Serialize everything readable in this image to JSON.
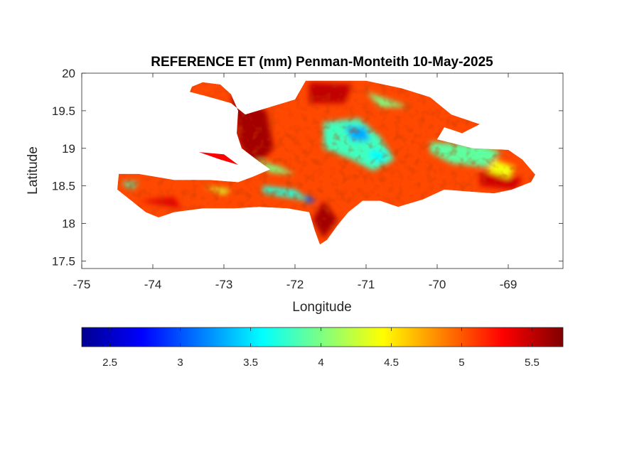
{
  "chart_data": {
    "type": "heatmap",
    "title": "REFERENCE ET (mm) Penman-Monteith 10-May-2025",
    "xlabel": "Longitude",
    "ylabel": "Latitude",
    "xlim": [
      -75,
      -68.23
    ],
    "ylim": [
      17.4,
      20
    ],
    "x_ticks": [
      -75,
      -74,
      -73,
      -72,
      -71,
      -70,
      -69
    ],
    "y_ticks": [
      17.5,
      18,
      18.5,
      19,
      19.5,
      20
    ],
    "x_tick_labels": [
      "-75",
      "-74",
      "-73",
      "-72",
      "-71",
      "-70",
      "-69"
    ],
    "y_tick_labels": [
      "17.5",
      "18",
      "18.5",
      "19",
      "19.5",
      "20"
    ],
    "colormap": "jet",
    "colorbar": {
      "orientation": "horizontal",
      "placement": "below",
      "range": [
        2.3,
        5.72
      ],
      "ticks": [
        2.5,
        3,
        3.5,
        4,
        4.5,
        5,
        5.5
      ],
      "tick_labels": [
        "2.5",
        "3",
        "3.5",
        "4",
        "4.5",
        "5",
        "5.5"
      ]
    },
    "land_outline": [
      [
        -74.48,
        18.66
      ],
      [
        -74.2,
        18.66
      ],
      [
        -73.7,
        18.58
      ],
      [
        -73.2,
        18.58
      ],
      [
        -72.8,
        18.55
      ],
      [
        -72.6,
        18.62
      ],
      [
        -72.35,
        18.72
      ],
      [
        -72.5,
        18.82
      ],
      [
        -72.75,
        19.0
      ],
      [
        -72.82,
        19.2
      ],
      [
        -72.8,
        19.5
      ],
      [
        -72.9,
        19.72
      ],
      [
        -73.05,
        19.85
      ],
      [
        -73.3,
        19.88
      ],
      [
        -73.45,
        19.82
      ],
      [
        -73.48,
        19.75
      ],
      [
        -73.2,
        19.68
      ],
      [
        -72.9,
        19.6
      ],
      [
        -72.7,
        19.45
      ],
      [
        -72.35,
        19.55
      ],
      [
        -72.0,
        19.65
      ],
      [
        -71.85,
        19.9
      ],
      [
        -71.0,
        19.9
      ],
      [
        -70.5,
        19.8
      ],
      [
        -70.1,
        19.68
      ],
      [
        -69.8,
        19.45
      ],
      [
        -69.4,
        19.32
      ],
      [
        -69.65,
        19.2
      ],
      [
        -69.9,
        19.28
      ],
      [
        -70.0,
        19.12
      ],
      [
        -69.5,
        19.0
      ],
      [
        -69.0,
        18.98
      ],
      [
        -68.8,
        18.85
      ],
      [
        -68.62,
        18.65
      ],
      [
        -68.68,
        18.55
      ],
      [
        -68.95,
        18.45
      ],
      [
        -69.2,
        18.4
      ],
      [
        -69.5,
        18.42
      ],
      [
        -69.9,
        18.45
      ],
      [
        -70.2,
        18.32
      ],
      [
        -70.55,
        18.22
      ],
      [
        -70.8,
        18.3
      ],
      [
        -71.05,
        18.3
      ],
      [
        -71.25,
        18.15
      ],
      [
        -71.38,
        18.0
      ],
      [
        -71.42,
        17.95
      ],
      [
        -71.55,
        17.78
      ],
      [
        -71.65,
        17.72
      ],
      [
        -71.72,
        17.9
      ],
      [
        -71.8,
        18.15
      ],
      [
        -72.1,
        18.2
      ],
      [
        -72.5,
        18.22
      ],
      [
        -72.85,
        18.2
      ],
      [
        -73.3,
        18.2
      ],
      [
        -73.7,
        18.15
      ],
      [
        -73.92,
        18.08
      ],
      [
        -74.1,
        18.15
      ],
      [
        -74.3,
        18.3
      ],
      [
        -74.5,
        18.45
      ],
      [
        -74.48,
        18.66
      ]
    ],
    "islands": [
      [
        [
          -73.35,
          18.95
        ],
        [
          -73.05,
          18.85
        ],
        [
          -72.8,
          18.78
        ],
        [
          -73.0,
          18.92
        ],
        [
          -73.35,
          18.95
        ]
      ]
    ],
    "regions": [
      {
        "value": 5.6,
        "outline": [
          [
            -72.9,
            19.72
          ],
          [
            -72.4,
            19.5
          ],
          [
            -72.3,
            19.0
          ],
          [
            -72.6,
            18.7
          ],
          [
            -72.8,
            19.1
          ],
          [
            -72.9,
            19.72
          ]
        ]
      },
      {
        "value": 5.5,
        "outline": [
          [
            -71.8,
            19.88
          ],
          [
            -71.2,
            19.85
          ],
          [
            -71.3,
            19.6
          ],
          [
            -71.8,
            19.6
          ],
          [
            -71.8,
            19.88
          ]
        ]
      },
      {
        "value": 5.6,
        "outline": [
          [
            -71.6,
            18.3
          ],
          [
            -71.4,
            18.05
          ],
          [
            -71.6,
            17.8
          ],
          [
            -71.75,
            18.05
          ],
          [
            -71.6,
            18.3
          ]
        ]
      },
      {
        "value": 5.45,
        "outline": [
          [
            -69.4,
            18.7
          ],
          [
            -68.8,
            18.6
          ],
          [
            -68.9,
            18.45
          ],
          [
            -69.4,
            18.5
          ],
          [
            -69.4,
            18.7
          ]
        ]
      },
      {
        "value": 5.4,
        "outline": [
          [
            -74.2,
            18.3
          ],
          [
            -73.6,
            18.2
          ],
          [
            -73.7,
            18.35
          ],
          [
            -74.2,
            18.3
          ]
        ]
      },
      {
        "value": 3.8,
        "outline": [
          [
            -71.6,
            19.35
          ],
          [
            -71.1,
            19.4
          ],
          [
            -70.8,
            19.15
          ],
          [
            -70.6,
            18.85
          ],
          [
            -70.9,
            18.7
          ],
          [
            -71.2,
            18.85
          ],
          [
            -71.6,
            19.0
          ],
          [
            -71.6,
            19.35
          ]
        ]
      },
      {
        "value": 3.3,
        "outline": [
          [
            -71.3,
            19.3
          ],
          [
            -71.0,
            19.28
          ],
          [
            -70.95,
            19.1
          ],
          [
            -71.2,
            19.1
          ],
          [
            -71.3,
            19.3
          ]
        ]
      },
      {
        "value": 3.6,
        "outline": [
          [
            -70.95,
            19.0
          ],
          [
            -70.7,
            18.95
          ],
          [
            -70.75,
            18.8
          ],
          [
            -70.95,
            18.85
          ],
          [
            -70.95,
            19.0
          ]
        ]
      },
      {
        "value": 3.9,
        "outline": [
          [
            -70.1,
            19.08
          ],
          [
            -69.4,
            19.05
          ],
          [
            -69.1,
            18.95
          ],
          [
            -69.3,
            18.75
          ],
          [
            -69.8,
            18.8
          ],
          [
            -70.1,
            18.95
          ],
          [
            -70.1,
            19.08
          ]
        ]
      },
      {
        "value": 4.4,
        "outline": [
          [
            -69.2,
            18.85
          ],
          [
            -68.9,
            18.75
          ],
          [
            -69.0,
            18.6
          ],
          [
            -69.3,
            18.7
          ],
          [
            -69.2,
            18.85
          ]
        ]
      },
      {
        "value": 3.7,
        "outline": [
          [
            -72.45,
            18.5
          ],
          [
            -72.0,
            18.45
          ],
          [
            -71.8,
            18.3
          ],
          [
            -72.1,
            18.35
          ],
          [
            -72.45,
            18.4
          ],
          [
            -72.45,
            18.5
          ]
        ]
      },
      {
        "value": 3.0,
        "outline": [
          [
            -71.85,
            18.38
          ],
          [
            -71.7,
            18.3
          ],
          [
            -71.85,
            18.27
          ],
          [
            -71.85,
            18.38
          ]
        ]
      },
      {
        "value": 3.8,
        "outline": [
          [
            -74.45,
            18.55
          ],
          [
            -74.3,
            18.45
          ],
          [
            -74.2,
            18.55
          ],
          [
            -74.45,
            18.55
          ]
        ]
      },
      {
        "value": 4.0,
        "outline": [
          [
            -72.55,
            18.85
          ],
          [
            -72.2,
            18.75
          ],
          [
            -72.0,
            18.65
          ],
          [
            -72.35,
            18.68
          ],
          [
            -72.55,
            18.85
          ]
        ]
      },
      {
        "value": 4.0,
        "outline": [
          [
            -71.0,
            19.75
          ],
          [
            -70.6,
            19.62
          ],
          [
            -70.4,
            19.55
          ],
          [
            -70.8,
            19.55
          ],
          [
            -71.0,
            19.75
          ]
        ]
      },
      {
        "value": 4.3,
        "outline": [
          [
            -73.3,
            18.5
          ],
          [
            -72.9,
            18.45
          ],
          [
            -73.0,
            18.38
          ],
          [
            -73.3,
            18.5
          ]
        ]
      }
    ],
    "note": ""
  }
}
